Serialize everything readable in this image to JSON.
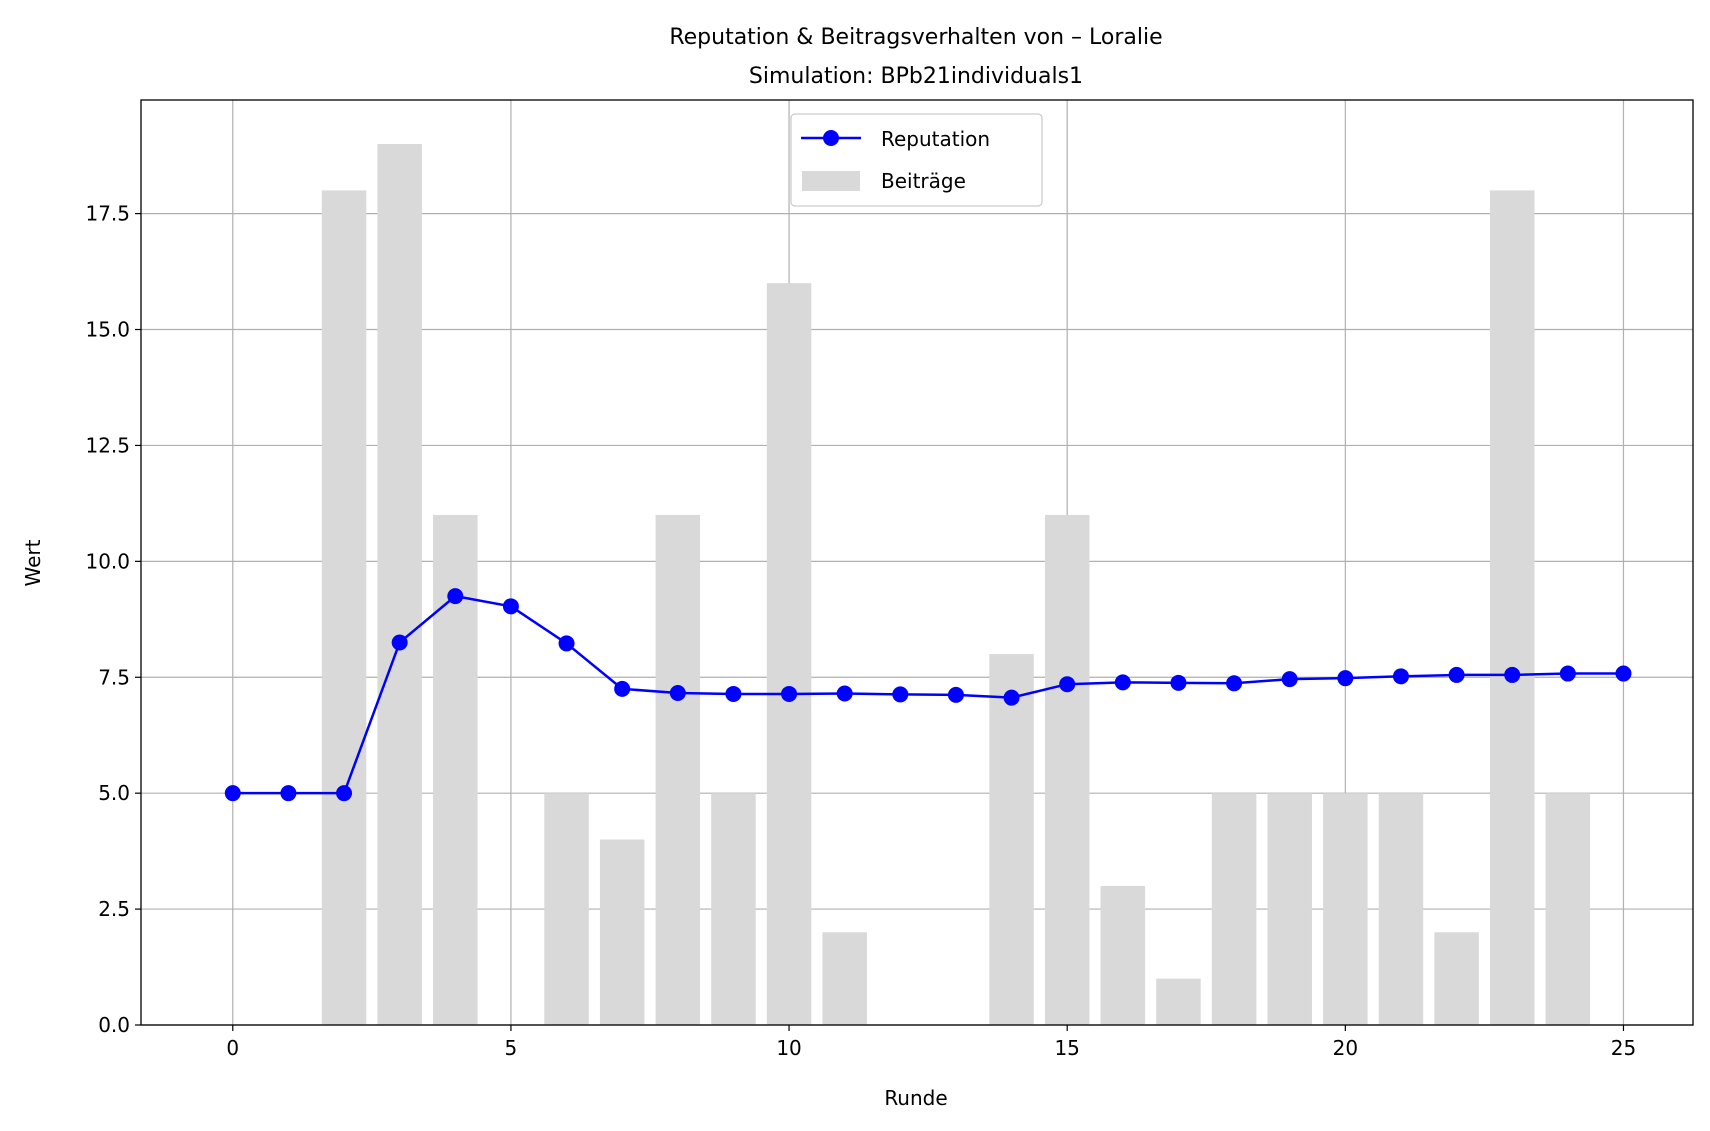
{
  "chart_data": {
    "type": "bar+line",
    "title": "Reputation & Beitragsverhalten von – Loralie",
    "subtitle": "Simulation: BPb21individuals1",
    "xlabel": "Runde",
    "ylabel": "Wert",
    "xlim": [
      -1.65,
      26.25
    ],
    "ylim": [
      0,
      19.95
    ],
    "xticks": [
      0,
      5,
      10,
      15,
      20,
      25
    ],
    "yticks": [
      0.0,
      2.5,
      5.0,
      7.5,
      10.0,
      12.5,
      15.0,
      17.5
    ],
    "xtick_labels": [
      "0",
      "5",
      "10",
      "15",
      "20",
      "25"
    ],
    "ytick_labels": [
      "0.0",
      "2.5",
      "5.0",
      "7.5",
      "10.0",
      "12.5",
      "15.0",
      "17.5"
    ],
    "grid": true,
    "legend_position": "upper center",
    "x": [
      0,
      1,
      2,
      3,
      4,
      5,
      6,
      7,
      8,
      9,
      10,
      11,
      12,
      13,
      14,
      15,
      16,
      17,
      18,
      19,
      20,
      21,
      22,
      23,
      24,
      25
    ],
    "series": [
      {
        "name": "Reputation",
        "kind": "line",
        "color": "#0000ff",
        "values": [
          5.0,
          5.0,
          5.0,
          8.25,
          9.25,
          9.03,
          8.23,
          7.25,
          7.16,
          7.14,
          7.14,
          7.15,
          7.13,
          7.12,
          7.06,
          7.35,
          7.39,
          7.38,
          7.37,
          7.46,
          7.48,
          7.52,
          7.55,
          7.55,
          7.58,
          7.58
        ]
      },
      {
        "name": "Beiträge",
        "kind": "bar",
        "color": "#d9d9d9",
        "values": [
          0,
          0,
          18,
          19,
          11,
          0,
          5,
          4,
          11,
          5,
          16,
          2,
          0,
          0,
          8,
          11,
          3,
          1,
          5,
          5,
          5,
          5,
          2,
          18,
          5,
          0
        ]
      }
    ]
  }
}
